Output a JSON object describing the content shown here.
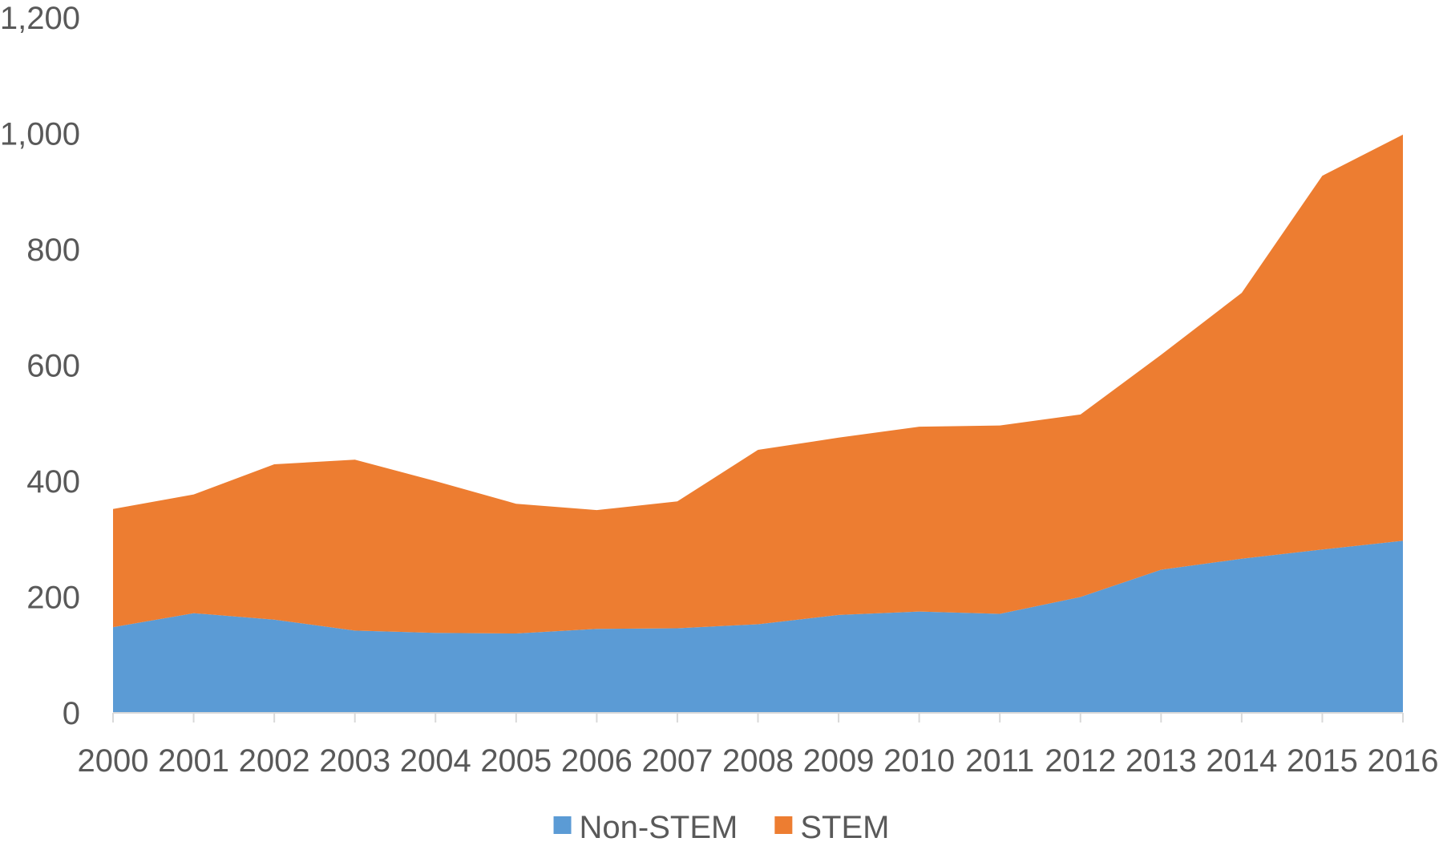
{
  "chart_data": {
    "type": "area",
    "stacked": true,
    "categories": [
      "2000",
      "2001",
      "2002",
      "2003",
      "2004",
      "2005",
      "2006",
      "2007",
      "2008",
      "2009",
      "2010",
      "2011",
      "2012",
      "2013",
      "2014",
      "2015",
      "2016"
    ],
    "series": [
      {
        "name": "Non-STEM",
        "color": "#5B9BD5",
        "values": [
          148,
          172,
          161,
          142,
          138,
          137,
          145,
          146,
          153,
          169,
          175,
          171,
          200,
          247,
          266,
          282,
          297
        ]
      },
      {
        "name": "STEM",
        "color": "#ED7D31",
        "values": [
          204,
          205,
          268,
          295,
          262,
          224,
          205,
          219,
          301,
          306,
          319,
          325,
          315,
          371,
          459,
          645,
          701
        ]
      }
    ],
    "y_ticks": [
      "0",
      "200",
      "400",
      "600",
      "800",
      "1,000",
      "1,200"
    ],
    "ylim": [
      0,
      1200
    ],
    "grid": false,
    "legend_position": "bottom",
    "title": "",
    "xlabel": "",
    "ylabel": ""
  }
}
